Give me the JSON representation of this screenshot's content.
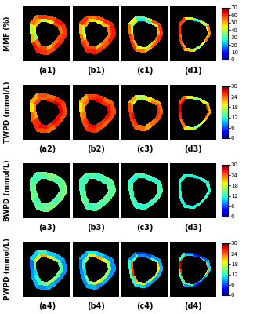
{
  "chart_data": [
    {
      "type": "heatmap",
      "ylabel": "MMF (%)",
      "colorbar_range": [
        0,
        70
      ],
      "colorbar_ticks": [
        0,
        10,
        20,
        30,
        40,
        50,
        60,
        70
      ],
      "panels": [
        {
          "label": "(a1)",
          "outer": [
            60,
            62,
            58,
            60,
            55,
            40,
            50,
            62,
            60,
            58,
            62,
            60
          ],
          "inner": [
            55,
            58,
            45,
            40,
            50,
            45,
            35,
            55,
            58,
            50,
            55,
            58
          ]
        },
        {
          "label": "(b1)",
          "outer": [
            62,
            60,
            58,
            55,
            60,
            50,
            55,
            60,
            62,
            60,
            58,
            62
          ],
          "inner": [
            55,
            50,
            45,
            48,
            52,
            40,
            45,
            55,
            58,
            50,
            55,
            55
          ]
        },
        {
          "label": "(c1)",
          "outer": [
            60,
            58,
            40,
            30,
            45,
            55,
            60,
            60,
            55,
            50,
            58,
            60
          ],
          "inner": [
            50,
            40,
            30,
            25,
            35,
            45,
            55,
            50,
            45,
            40,
            50,
            55
          ]
        },
        {
          "label": "(d1)",
          "outer": [
            55,
            40,
            30,
            45,
            60,
            62,
            60,
            58,
            50,
            40,
            45,
            55
          ],
          "inner": [
            45,
            35,
            25,
            40,
            55,
            60,
            55,
            50,
            40,
            35,
            40,
            50
          ]
        }
      ]
    },
    {
      "type": "heatmap",
      "ylabel": "TWPD (mmol/L)",
      "colorbar_range": [
        0,
        30
      ],
      "colorbar_ticks": [
        0,
        6,
        12,
        18,
        24,
        30
      ],
      "panels": [
        {
          "label": "(a2)",
          "outer": [
            25,
            26,
            24,
            25,
            22,
            20,
            24,
            26,
            25,
            24,
            26,
            25
          ],
          "inner": [
            27,
            28,
            26,
            24,
            25,
            23,
            22,
            26,
            27,
            26,
            27,
            27
          ]
        },
        {
          "label": "(b2)",
          "outer": [
            25,
            24,
            26,
            25,
            22,
            20,
            23,
            25,
            26,
            25,
            24,
            25
          ],
          "inner": [
            27,
            26,
            27,
            26,
            24,
            22,
            24,
            26,
            27,
            26,
            26,
            27
          ]
        },
        {
          "label": "(c3)",
          "outer": [
            24,
            22,
            20,
            18,
            22,
            25,
            26,
            25,
            24,
            22,
            24,
            25
          ],
          "inner": [
            26,
            24,
            20,
            16,
            18,
            24,
            27,
            26,
            24,
            22,
            24,
            26
          ]
        },
        {
          "label": "(d3)",
          "outer": [
            22,
            18,
            16,
            20,
            25,
            27,
            26,
            24,
            20,
            16,
            18,
            22
          ],
          "inner": [
            26,
            20,
            14,
            18,
            26,
            28,
            27,
            24,
            18,
            14,
            18,
            24
          ]
        }
      ]
    },
    {
      "type": "heatmap",
      "ylabel": "BWPD (mmol/L)",
      "colorbar_range": [
        0,
        30
      ],
      "colorbar_ticks": [
        0,
        6,
        12,
        18,
        24,
        30
      ],
      "panels": [
        {
          "label": "(a3)",
          "outer": [
            15,
            14,
            15,
            14,
            13,
            14,
            15,
            14,
            14,
            15,
            14,
            15
          ],
          "inner": [
            14,
            13,
            14,
            13,
            13,
            14,
            14,
            13,
            14,
            14,
            13,
            14
          ]
        },
        {
          "label": "(b3)",
          "outer": [
            14,
            14,
            13,
            14,
            13,
            13,
            14,
            14,
            13,
            14,
            14,
            14
          ],
          "inner": [
            14,
            13,
            13,
            13,
            13,
            13,
            13,
            14,
            13,
            13,
            14,
            14
          ]
        },
        {
          "label": "(c3)",
          "outer": [
            13,
            12,
            13,
            13,
            12,
            13,
            13,
            13,
            12,
            13,
            13,
            13
          ],
          "inner": [
            13,
            12,
            12,
            12,
            12,
            13,
            13,
            12,
            12,
            12,
            13,
            13
          ]
        },
        {
          "label": "(d3)",
          "outer": [
            12,
            12,
            11,
            12,
            12,
            12,
            12,
            11,
            12,
            12,
            12,
            12
          ],
          "inner": [
            12,
            11,
            11,
            11,
            12,
            12,
            12,
            11,
            11,
            11,
            12,
            12
          ]
        }
      ]
    },
    {
      "type": "heatmap",
      "ylabel": "PWPD (mmol/L)",
      "colorbar_range": [
        0,
        30
      ],
      "colorbar_ticks": [
        0,
        6,
        12,
        18,
        24,
        30
      ],
      "panels": [
        {
          "label": "(a4)",
          "outer": [
            8,
            9,
            10,
            12,
            10,
            7,
            8,
            9,
            8,
            9,
            8,
            8
          ],
          "inner": [
            14,
            16,
            20,
            22,
            18,
            14,
            10,
            12,
            14,
            16,
            15,
            14
          ]
        },
        {
          "label": "(b4)",
          "outer": [
            8,
            8,
            10,
            11,
            9,
            7,
            8,
            8,
            9,
            8,
            9,
            8
          ],
          "inner": [
            16,
            18,
            22,
            20,
            16,
            12,
            10,
            14,
            16,
            18,
            16,
            15
          ]
        },
        {
          "label": "(c4)",
          "outer": [
            9,
            8,
            6,
            5,
            8,
            12,
            14,
            12,
            10,
            8,
            8,
            9
          ],
          "inner": [
            20,
            14,
            8,
            8,
            14,
            24,
            26,
            22,
            18,
            14,
            16,
            20
          ]
        },
        {
          "label": "(d4)",
          "outer": [
            10,
            6,
            4,
            6,
            12,
            16,
            14,
            12,
            8,
            4,
            6,
            10
          ],
          "inner": [
            22,
            12,
            6,
            10,
            24,
            28,
            26,
            22,
            14,
            8,
            12,
            20
          ]
        }
      ]
    }
  ]
}
